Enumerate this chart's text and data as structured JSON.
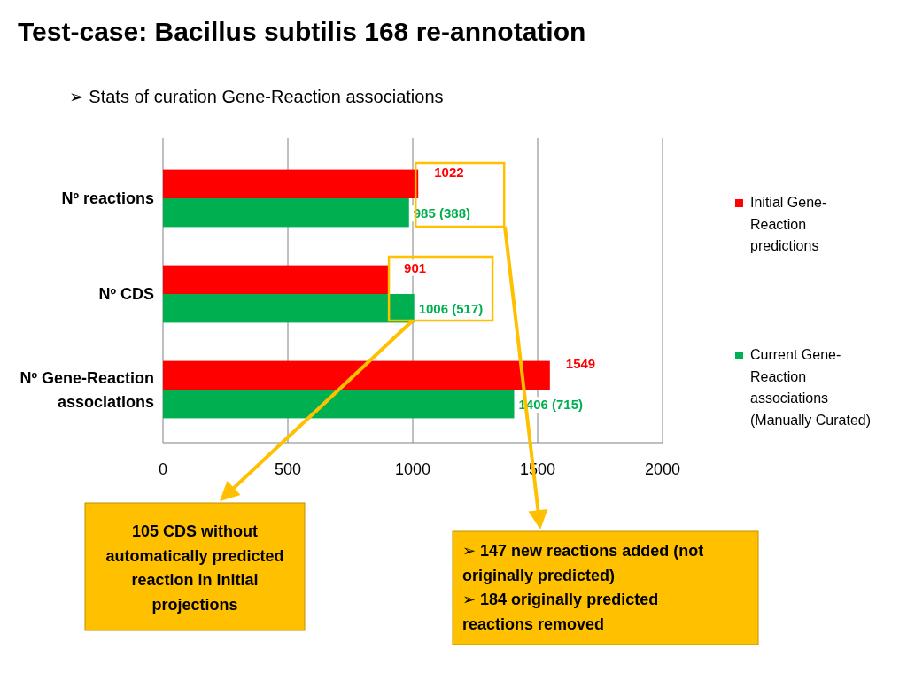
{
  "chart_data": {
    "type": "bar",
    "orientation": "horizontal",
    "title": "Test-case: Bacillus subtilis 168 re-annotation",
    "subtitle": "➢ Stats of curation Gene-Reaction associations",
    "categories": [
      "Nº reactions",
      "Nº CDS",
      "Nº Gene-Reaction associations"
    ],
    "series": [
      {
        "name": "Initial Gene-Reaction predictions",
        "color": "#ff0000",
        "values": [
          1022,
          901,
          1549
        ],
        "value_labels": [
          "1022",
          "901",
          "1549"
        ]
      },
      {
        "name": "Current Gene-Reaction associations (Manually Curated)",
        "color": "#00b050",
        "values": [
          985,
          1006,
          1406
        ],
        "value_labels": [
          "985 (388)",
          "1006 (517)",
          "1406 (715)"
        ]
      }
    ],
    "xlim": [
      0,
      2000
    ],
    "xticks": [
      0,
      500,
      1000,
      1500,
      2000
    ],
    "grid": "x",
    "legend": "right",
    "annotations": [
      "105 CDS without automatically predicted reaction in initial projections",
      "➢ 147 new reactions added (not originally predicted)",
      "➢ 184 originally predicted reactions removed"
    ]
  }
}
